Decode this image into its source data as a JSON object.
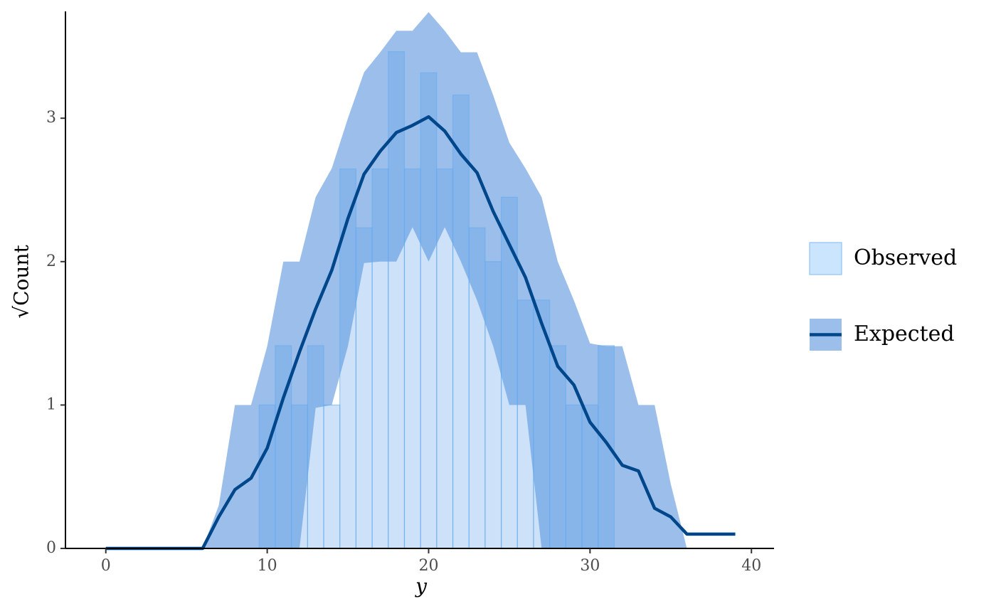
{
  "chart_data": {
    "type": "rootogram",
    "x_label": "y",
    "y_label": "√Count",
    "x": [
      0,
      1,
      2,
      3,
      4,
      5,
      6,
      7,
      8,
      9,
      10,
      11,
      12,
      13,
      14,
      15,
      16,
      17,
      18,
      19,
      20,
      21,
      22,
      23,
      24,
      25,
      26,
      27,
      28,
      29,
      30,
      31,
      32,
      33,
      34,
      35,
      36,
      37,
      38,
      39
    ],
    "series": [
      {
        "name": "Observed",
        "color": "#cce5ff",
        "values": [
          0,
          0,
          0,
          0,
          0,
          0,
          0,
          0,
          0,
          0,
          1,
          1.414,
          1,
          1.414,
          1,
          2.646,
          2.236,
          2.646,
          3.464,
          2.646,
          3.317,
          2.646,
          3.162,
          2.236,
          2,
          2.449,
          1.732,
          1.732,
          1.414,
          1,
          1,
          1.414,
          0,
          0,
          0,
          0,
          0,
          0,
          0,
          0
        ]
      },
      {
        "name": "Expected",
        "color": "#00468b",
        "band_color": "#9bbfea",
        "values": [
          0,
          0,
          0,
          0,
          0,
          0,
          0,
          0.22,
          0.41,
          0.49,
          0.7,
          1.05,
          1.37,
          1.67,
          1.94,
          2.3,
          2.61,
          2.77,
          2.9,
          2.95,
          3.01,
          2.91,
          2.75,
          2.62,
          2.35,
          2.12,
          1.89,
          1.57,
          1.27,
          1.14,
          0.88,
          0.74,
          0.58,
          0.54,
          0.28,
          0.22,
          0.1,
          0.1,
          0.1,
          0.1
        ],
        "upper": [
          0,
          0,
          0,
          0,
          0,
          0,
          0,
          0.3,
          1,
          1,
          1.41,
          2,
          2,
          2.45,
          2.65,
          3,
          3.32,
          3.46,
          3.61,
          3.61,
          3.74,
          3.61,
          3.46,
          3.46,
          3.16,
          2.83,
          2.65,
          2.45,
          2,
          1.73,
          1.43,
          1.41,
          1.41,
          1,
          1,
          0.45,
          0,
          0,
          0,
          0
        ],
        "lower": [
          0,
          0,
          0,
          0,
          0,
          0,
          0,
          0,
          0,
          0,
          0,
          0,
          0,
          0.98,
          1,
          1.41,
          1.99,
          2,
          2,
          2.24,
          2,
          2.24,
          2,
          1.73,
          1.41,
          1,
          1,
          0,
          0,
          0,
          0,
          0,
          0,
          0,
          0,
          0,
          0,
          0,
          0,
          0
        ]
      }
    ],
    "xlim": [
      -2.5,
      41.4
    ],
    "xticks": [
      0,
      10,
      20,
      30,
      40
    ],
    "ylim": [
      0,
      3.745
    ],
    "yticks": [
      0,
      1,
      2,
      3
    ],
    "grid": false,
    "legend": "right"
  }
}
